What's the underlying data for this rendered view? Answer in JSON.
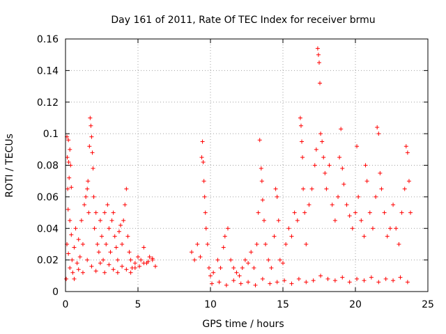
{
  "chart_data": {
    "type": "scatter",
    "title": "Day 161 of 2011, Rate Of TEC Index for receiver brmu",
    "xlabel": "GPS time / hours",
    "ylabel": "ROTI / TECUs",
    "xlim": [
      0,
      25
    ],
    "ylim": [
      0,
      0.16
    ],
    "x_ticks": [
      0,
      5,
      10,
      15,
      20,
      25
    ],
    "x_tick_labels": [
      "0",
      "5",
      "10",
      "15",
      "20",
      "25"
    ],
    "y_ticks": [
      0,
      0.02,
      0.04,
      0.06,
      0.08,
      0.1,
      0.12,
      0.14,
      0.16
    ],
    "y_tick_labels": [
      "0",
      "0.02",
      "0.04",
      "0.06",
      "0.08",
      "0.1",
      "0.12",
      "0.14",
      "0.16"
    ],
    "grid": true,
    "marker": "+",
    "series_color": "#ff0000",
    "series": [
      {
        "name": "ROTI",
        "points": [
          [
            0.05,
            0.008
          ],
          [
            0.1,
            0.098
          ],
          [
            0.12,
            0.085
          ],
          [
            0.15,
            0.065
          ],
          [
            0.18,
            0.052
          ],
          [
            0.2,
            0.096
          ],
          [
            0.22,
            0.082
          ],
          [
            0.25,
            0.072
          ],
          [
            0.3,
            0.09
          ],
          [
            0.35,
            0.08
          ],
          [
            0.4,
            0.066
          ],
          [
            0.1,
            0.03
          ],
          [
            0.2,
            0.024
          ],
          [
            0.3,
            0.045
          ],
          [
            0.4,
            0.036
          ],
          [
            0.45,
            0.02
          ],
          [
            0.5,
            0.012
          ],
          [
            0.6,
            0.028
          ],
          [
            0.7,
            0.04
          ],
          [
            0.8,
            0.018
          ],
          [
            0.9,
            0.033
          ],
          [
            1.0,
            0.022
          ],
          [
            1.1,
            0.045
          ],
          [
            1.2,
            0.03
          ],
          [
            1.3,
            0.055
          ],
          [
            1.4,
            0.06
          ],
          [
            1.5,
            0.065
          ],
          [
            1.55,
            0.07
          ],
          [
            1.6,
            0.05
          ],
          [
            1.65,
            0.092
          ],
          [
            1.7,
            0.11
          ],
          [
            1.75,
            0.105
          ],
          [
            1.8,
            0.098
          ],
          [
            1.85,
            0.088
          ],
          [
            1.9,
            0.078
          ],
          [
            1.95,
            0.06
          ],
          [
            2.0,
            0.04
          ],
          [
            2.1,
            0.05
          ],
          [
            2.2,
            0.03
          ],
          [
            2.3,
            0.025
          ],
          [
            2.4,
            0.045
          ],
          [
            2.5,
            0.035
          ],
          [
            2.6,
            0.02
          ],
          [
            2.7,
            0.05
          ],
          [
            2.8,
            0.03
          ],
          [
            2.9,
            0.055
          ],
          [
            3.0,
            0.04
          ],
          [
            3.1,
            0.025
          ],
          [
            3.2,
            0.045
          ],
          [
            3.3,
            0.05
          ],
          [
            3.4,
            0.035
          ],
          [
            3.5,
            0.028
          ],
          [
            3.6,
            0.02
          ],
          [
            3.7,
            0.038
          ],
          [
            3.8,
            0.042
          ],
          [
            3.9,
            0.03
          ],
          [
            4.0,
            0.045
          ],
          [
            4.1,
            0.055
          ],
          [
            4.2,
            0.065
          ],
          [
            4.3,
            0.035
          ],
          [
            4.4,
            0.025
          ],
          [
            4.5,
            0.02
          ],
          [
            4.6,
            0.015
          ],
          [
            4.8,
            0.018
          ],
          [
            5.0,
            0.022
          ],
          [
            5.2,
            0.02
          ],
          [
            5.4,
            0.028
          ],
          [
            5.6,
            0.018
          ],
          [
            5.8,
            0.022
          ],
          [
            6.0,
            0.02
          ],
          [
            6.2,
            0.016
          ],
          [
            0.3,
            0.015
          ],
          [
            0.6,
            0.008
          ],
          [
            0.9,
            0.014
          ],
          [
            1.2,
            0.012
          ],
          [
            1.5,
            0.02
          ],
          [
            1.8,
            0.016
          ],
          [
            2.1,
            0.013
          ],
          [
            2.4,
            0.018
          ],
          [
            2.7,
            0.012
          ],
          [
            3.0,
            0.017
          ],
          [
            3.3,
            0.014
          ],
          [
            3.6,
            0.012
          ],
          [
            3.9,
            0.016
          ],
          [
            4.2,
            0.014
          ],
          [
            4.5,
            0.012
          ],
          [
            4.8,
            0.015
          ],
          [
            5.1,
            0.016
          ],
          [
            5.4,
            0.018
          ],
          [
            5.7,
            0.019
          ],
          [
            6.0,
            0.021
          ],
          [
            8.7,
            0.025
          ],
          [
            8.9,
            0.02
          ],
          [
            9.1,
            0.03
          ],
          [
            9.3,
            0.022
          ],
          [
            9.4,
            0.085
          ],
          [
            9.45,
            0.095
          ],
          [
            9.5,
            0.082
          ],
          [
            9.55,
            0.07
          ],
          [
            9.6,
            0.06
          ],
          [
            9.65,
            0.05
          ],
          [
            9.7,
            0.04
          ],
          [
            9.8,
            0.03
          ],
          [
            9.9,
            0.015
          ],
          [
            10.0,
            0.01
          ],
          [
            10.2,
            0.012
          ],
          [
            10.5,
            0.02
          ],
          [
            10.7,
            0.015
          ],
          [
            10.9,
            0.028
          ],
          [
            11.0,
            0.035
          ],
          [
            11.2,
            0.04
          ],
          [
            11.4,
            0.02
          ],
          [
            11.6,
            0.015
          ],
          [
            11.8,
            0.012
          ],
          [
            12.0,
            0.01
          ],
          [
            12.2,
            0.015
          ],
          [
            12.4,
            0.02
          ],
          [
            12.6,
            0.018
          ],
          [
            12.8,
            0.025
          ],
          [
            13.0,
            0.015
          ],
          [
            13.2,
            0.03
          ],
          [
            13.3,
            0.05
          ],
          [
            13.4,
            0.096
          ],
          [
            13.5,
            0.078
          ],
          [
            13.55,
            0.07
          ],
          [
            13.6,
            0.058
          ],
          [
            13.7,
            0.045
          ],
          [
            13.8,
            0.03
          ],
          [
            14.0,
            0.02
          ],
          [
            14.2,
            0.015
          ],
          [
            14.4,
            0.035
          ],
          [
            14.5,
            0.065
          ],
          [
            14.6,
            0.06
          ],
          [
            14.7,
            0.045
          ],
          [
            14.8,
            0.02
          ],
          [
            15.0,
            0.018
          ],
          [
            15.2,
            0.03
          ],
          [
            15.4,
            0.04
          ],
          [
            15.6,
            0.035
          ],
          [
            15.8,
            0.05
          ],
          [
            16.0,
            0.045
          ],
          [
            16.2,
            0.11
          ],
          [
            16.25,
            0.105
          ],
          [
            16.3,
            0.095
          ],
          [
            16.35,
            0.085
          ],
          [
            16.4,
            0.065
          ],
          [
            16.5,
            0.05
          ],
          [
            16.6,
            0.03
          ],
          [
            16.8,
            0.055
          ],
          [
            17.0,
            0.065
          ],
          [
            17.2,
            0.08
          ],
          [
            17.3,
            0.09
          ],
          [
            17.4,
            0.154
          ],
          [
            17.45,
            0.15
          ],
          [
            17.5,
            0.145
          ],
          [
            17.55,
            0.132
          ],
          [
            17.6,
            0.1
          ],
          [
            17.7,
            0.095
          ],
          [
            17.8,
            0.085
          ],
          [
            17.9,
            0.075
          ],
          [
            18.0,
            0.065
          ],
          [
            18.2,
            0.08
          ],
          [
            18.4,
            0.055
          ],
          [
            18.6,
            0.045
          ],
          [
            18.8,
            0.06
          ],
          [
            18.9,
            0.085
          ],
          [
            19.0,
            0.103
          ],
          [
            19.1,
            0.078
          ],
          [
            19.2,
            0.068
          ],
          [
            19.4,
            0.055
          ],
          [
            19.6,
            0.048
          ],
          [
            19.8,
            0.04
          ],
          [
            20.0,
            0.05
          ],
          [
            20.1,
            0.092
          ],
          [
            20.2,
            0.06
          ],
          [
            20.4,
            0.045
          ],
          [
            20.6,
            0.035
          ],
          [
            20.7,
            0.08
          ],
          [
            20.8,
            0.07
          ],
          [
            21.0,
            0.05
          ],
          [
            21.2,
            0.04
          ],
          [
            21.4,
            0.06
          ],
          [
            21.5,
            0.104
          ],
          [
            21.6,
            0.1
          ],
          [
            21.7,
            0.075
          ],
          [
            21.8,
            0.065
          ],
          [
            22.0,
            0.05
          ],
          [
            22.2,
            0.035
          ],
          [
            22.4,
            0.04
          ],
          [
            22.6,
            0.055
          ],
          [
            22.8,
            0.04
          ],
          [
            23.0,
            0.03
          ],
          [
            23.2,
            0.05
          ],
          [
            23.4,
            0.065
          ],
          [
            23.5,
            0.092
          ],
          [
            23.6,
            0.088
          ],
          [
            23.7,
            0.07
          ],
          [
            23.8,
            0.05
          ],
          [
            10.1,
            0.005
          ],
          [
            10.6,
            0.006
          ],
          [
            11.1,
            0.004
          ],
          [
            11.6,
            0.007
          ],
          [
            12.1,
            0.005
          ],
          [
            12.6,
            0.006
          ],
          [
            13.1,
            0.004
          ],
          [
            13.6,
            0.008
          ],
          [
            14.1,
            0.005
          ],
          [
            14.6,
            0.006
          ],
          [
            15.1,
            0.007
          ],
          [
            15.6,
            0.005
          ],
          [
            16.1,
            0.008
          ],
          [
            16.6,
            0.006
          ],
          [
            17.1,
            0.007
          ],
          [
            17.6,
            0.01
          ],
          [
            18.1,
            0.008
          ],
          [
            18.6,
            0.007
          ],
          [
            19.1,
            0.009
          ],
          [
            19.6,
            0.006
          ],
          [
            20.1,
            0.008
          ],
          [
            20.6,
            0.007
          ],
          [
            21.1,
            0.009
          ],
          [
            21.6,
            0.006
          ],
          [
            22.1,
            0.008
          ],
          [
            22.6,
            0.007
          ],
          [
            23.1,
            0.009
          ],
          [
            23.6,
            0.006
          ]
        ]
      }
    ]
  }
}
